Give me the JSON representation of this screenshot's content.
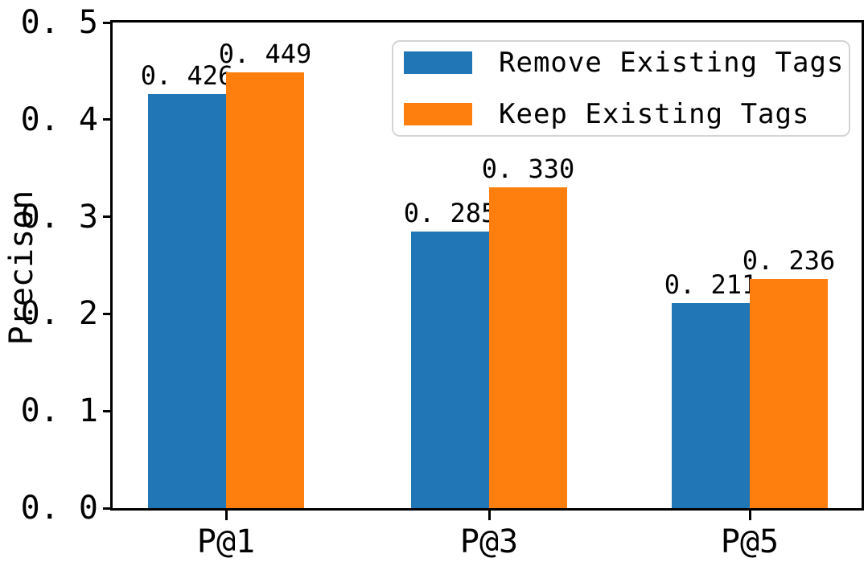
{
  "chart_data": {
    "type": "bar",
    "title": "",
    "ylabel": "Precison",
    "xlabel": "",
    "categories": [
      "P@1",
      "P@3",
      "P@5"
    ],
    "series": [
      {
        "name": "Remove Existing Tags",
        "color": "#2176b5",
        "values": [
          0.426,
          0.285,
          0.211
        ],
        "value_labels": [
          "0. 426",
          "0. 285",
          "0. 211"
        ]
      },
      {
        "name": "Keep Existing Tags",
        "color": "#ff7f0e",
        "values": [
          0.449,
          0.33,
          0.236
        ],
        "value_labels": [
          "0. 449",
          "0. 330",
          "0. 236"
        ]
      }
    ],
    "ylim": [
      0,
      0.5
    ],
    "y_ticks": [
      0.0,
      0.1,
      0.2,
      0.3,
      0.4,
      0.5
    ],
    "y_tick_labels": [
      "0. 0",
      "0. 1",
      "0. 2",
      "0. 3",
      "0. 4",
      "0. 5"
    ],
    "grid": false,
    "legend_position": "upper right",
    "axis_color": "#000000",
    "legend_border_color": "#d4d4d4",
    "background_color": "#ffffff"
  }
}
